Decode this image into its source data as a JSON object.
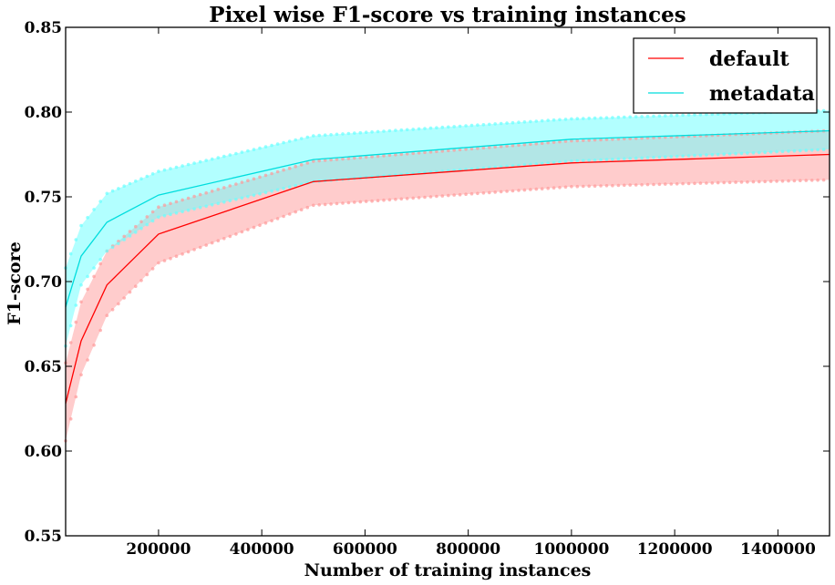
{
  "chart_data": {
    "type": "line",
    "title": "Pixel wise F1-score vs training instances",
    "xlabel": "Number of training instances",
    "ylabel": "F1-score",
    "xlim": [
      20000,
      1500000
    ],
    "ylim": [
      0.55,
      0.85
    ],
    "xticks": [
      200000,
      400000,
      600000,
      800000,
      1000000,
      1200000,
      1400000
    ],
    "xtick_labels": [
      "200000",
      "400000",
      "600000",
      "800000",
      "1000000",
      "1200000",
      "1400000"
    ],
    "yticks": [
      0.55,
      0.6,
      0.65,
      0.7,
      0.75,
      0.8,
      0.85
    ],
    "ytick_labels": [
      "0.55",
      "0.60",
      "0.65",
      "0.70",
      "0.75",
      "0.80",
      "0.85"
    ],
    "grid": false,
    "legend": "top-right",
    "x": [
      20000,
      50000,
      100000,
      200000,
      500000,
      1000000,
      1500000
    ],
    "series": [
      {
        "name": "default",
        "color": "#ff0000",
        "band_color": "#ff9999",
        "values": [
          0.628,
          0.665,
          0.698,
          0.728,
          0.759,
          0.77,
          0.775
        ],
        "lower": [
          0.606,
          0.645,
          0.68,
          0.711,
          0.745,
          0.756,
          0.76
        ],
        "upper": [
          0.652,
          0.688,
          0.718,
          0.744,
          0.771,
          0.783,
          0.789
        ]
      },
      {
        "name": "metadata",
        "color": "#00dddd",
        "band_color": "#66ffff",
        "values": [
          0.685,
          0.715,
          0.735,
          0.751,
          0.772,
          0.784,
          0.789
        ],
        "lower": [
          0.662,
          0.698,
          0.718,
          0.738,
          0.759,
          0.771,
          0.778
        ],
        "upper": [
          0.708,
          0.733,
          0.752,
          0.765,
          0.786,
          0.796,
          0.801
        ]
      }
    ]
  }
}
